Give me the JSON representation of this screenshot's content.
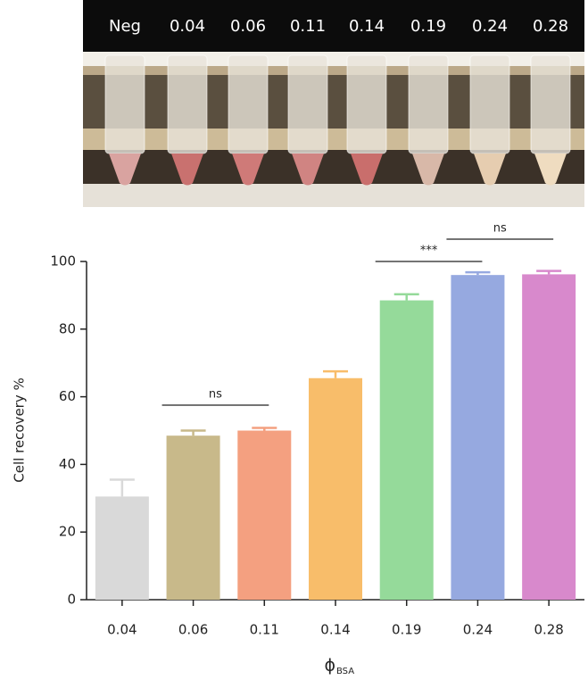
{
  "photo": {
    "labels": [
      "Neg",
      "0.04",
      "0.06",
      "0.11",
      "0.14",
      "0.19",
      "0.24",
      "0.28"
    ]
  },
  "chart_data": {
    "type": "bar",
    "ylabel": "Cell recovery %",
    "xlabel": "ϕ",
    "xlabel_subscript": "BSA",
    "categories": [
      "0.04",
      "0.06",
      "0.11",
      "0.14",
      "0.19",
      "0.24",
      "0.28"
    ],
    "values": [
      30.5,
      48.5,
      50,
      65.5,
      88.5,
      96,
      96.2
    ],
    "errors": [
      5,
      1.5,
      0.8,
      2,
      1.8,
      0.8,
      1
    ],
    "colors": [
      "#d9d9d9",
      "#c8b98a",
      "#f4a080",
      "#f8bd6a",
      "#95da9a",
      "#96a9e0",
      "#d889cc"
    ],
    "ylim": [
      0,
      100
    ],
    "yticks": [
      0,
      20,
      40,
      60,
      80,
      100
    ],
    "annotations": [
      "ns",
      "***",
      "ns"
    ]
  }
}
